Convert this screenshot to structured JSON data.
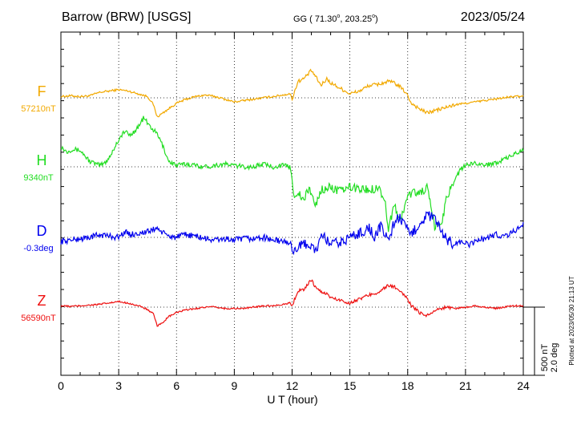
{
  "header": {
    "station": "Barrow (BRW)  [USGS]",
    "coords_prefix": "GG ( 71.30",
    "coords_deg": "o",
    "coords_mid": ", 203.25",
    "coords_end": ")",
    "date": "2023/05/24"
  },
  "plotted_note": "Plotted at 2023/05/30 21:13 UT",
  "scale": {
    "top": "500 nT",
    "bottom": "2.0 deg"
  },
  "chart_data": {
    "type": "line",
    "title": "Barrow (BRW)  [USGS]",
    "xlabel": "U T (hour)",
    "xlim": [
      0,
      24
    ],
    "xticks": [
      "0",
      "3",
      "6",
      "9",
      "12",
      "15",
      "18",
      "21",
      "24"
    ],
    "grid": true,
    "units_note": "series values are deviations from each trace's baseline, in scale units (500 nT = 2.0 deg per unit)",
    "series": [
      {
        "name": "F",
        "baseline": "57210nT",
        "color": "#f2a900",
        "x": [
          0,
          0.5,
          1,
          1.5,
          2,
          2.5,
          3,
          3.5,
          4,
          4.5,
          4.8,
          5,
          5.5,
          6,
          6.5,
          7,
          7.5,
          8,
          8.5,
          9,
          9.5,
          10,
          10.5,
          11,
          11.5,
          11.9,
          12,
          12.3,
          12.6,
          13,
          13.2,
          13.5,
          13.8,
          14,
          14.5,
          15,
          15.5,
          16,
          16.5,
          17,
          17.3,
          17.6,
          17.9,
          18.2,
          18.6,
          19,
          19.5,
          20,
          20.5,
          21,
          21.5,
          22,
          22.5,
          23,
          23.5,
          24
        ],
        "values": [
          0.02,
          0.03,
          0.02,
          0.03,
          0.08,
          0.1,
          0.12,
          0.1,
          0.06,
          0.02,
          -0.1,
          -0.28,
          -0.18,
          -0.08,
          -0.02,
          0.02,
          0.04,
          0.02,
          -0.02,
          -0.06,
          -0.04,
          -0.02,
          0.0,
          0.02,
          0.04,
          0.06,
          -0.02,
          0.24,
          0.28,
          0.4,
          0.32,
          0.18,
          0.28,
          0.22,
          0.14,
          0.06,
          0.1,
          0.18,
          0.2,
          0.24,
          0.22,
          0.16,
          0.08,
          -0.08,
          -0.16,
          -0.22,
          -0.18,
          -0.14,
          -0.1,
          -0.08,
          -0.06,
          -0.04,
          -0.02,
          0.0,
          0.02,
          0.02
        ]
      },
      {
        "name": "H",
        "baseline": "9340nT",
        "color": "#22dd22",
        "x": [
          0,
          0.3,
          0.6,
          1,
          1.5,
          2,
          2.3,
          2.6,
          3,
          3.3,
          3.6,
          4,
          4.3,
          4.6,
          5,
          5.3,
          5.6,
          6,
          6.5,
          7,
          7.5,
          8,
          8.5,
          9,
          9.5,
          10,
          10.5,
          11,
          11.5,
          11.9,
          12.1,
          12.3,
          12.6,
          12.9,
          13.2,
          13.5,
          14,
          14.5,
          15,
          15.5,
          16,
          16.5,
          16.8,
          17,
          17.3,
          17.6,
          17.9,
          18,
          18.3,
          18.6,
          19,
          19.4,
          19.8,
          20,
          20.4,
          20.8,
          21.2,
          21.6,
          22,
          22.5,
          23,
          23.5,
          24
        ],
        "values": [
          0.3,
          0.22,
          0.26,
          0.24,
          0.08,
          0.02,
          0.06,
          0.18,
          0.4,
          0.52,
          0.46,
          0.58,
          0.72,
          0.6,
          0.48,
          0.3,
          0.08,
          0.02,
          0.04,
          0.02,
          0.0,
          0.02,
          0.04,
          0.02,
          0.0,
          0.0,
          0.04,
          0.0,
          0.02,
          0.0,
          -0.4,
          -0.38,
          -0.5,
          -0.3,
          -0.58,
          -0.34,
          -0.3,
          -0.36,
          -0.3,
          -0.32,
          -0.34,
          -0.3,
          -0.48,
          -0.9,
          -0.56,
          -0.8,
          -0.52,
          -0.44,
          -0.36,
          -0.4,
          -0.3,
          -0.88,
          -0.8,
          -0.46,
          -0.2,
          -0.02,
          0.04,
          0.06,
          0.02,
          0.06,
          0.1,
          0.18,
          0.24
        ]
      },
      {
        "name": "D",
        "baseline": "-0.3deg",
        "color": "#0000ee",
        "x": [
          0,
          0.5,
          1,
          1.5,
          2,
          2.5,
          3,
          3.3,
          3.6,
          4,
          4.5,
          5,
          5.3,
          5.6,
          6,
          6.5,
          7,
          7.5,
          8,
          8.5,
          9,
          9.5,
          10,
          10.5,
          11,
          11.5,
          11.9,
          12,
          12.4,
          12.8,
          13.2,
          13.6,
          14,
          14.5,
          15,
          15.5,
          16,
          16.3,
          16.6,
          17,
          17.3,
          17.6,
          17.9,
          18.2,
          18.6,
          19,
          19.4,
          19.8,
          20,
          20.4,
          20.8,
          21.2,
          21.6,
          22,
          22.5,
          23,
          23.5,
          24
        ],
        "values": [
          -0.06,
          -0.04,
          -0.02,
          0.0,
          0.04,
          0.02,
          0.0,
          0.08,
          0.04,
          0.06,
          0.08,
          0.14,
          0.06,
          0.02,
          0.0,
          0.04,
          0.02,
          -0.02,
          -0.04,
          -0.02,
          -0.04,
          -0.02,
          -0.02,
          0.0,
          -0.04,
          -0.06,
          -0.08,
          -0.18,
          -0.14,
          -0.08,
          -0.2,
          0.02,
          -0.1,
          -0.08,
          0.0,
          0.06,
          0.14,
          0.0,
          0.16,
          -0.04,
          0.22,
          0.3,
          0.12,
          0.04,
          0.2,
          0.32,
          0.28,
          0.04,
          -0.02,
          -0.1,
          -0.06,
          -0.12,
          -0.04,
          -0.02,
          0.04,
          0.02,
          0.08,
          0.2
        ]
      },
      {
        "name": "Z",
        "baseline": "56590nT",
        "color": "#ee1111",
        "x": [
          0,
          0.5,
          1,
          1.5,
          2,
          2.5,
          3,
          3.5,
          4,
          4.4,
          4.8,
          5,
          5.3,
          5.6,
          6,
          6.5,
          7,
          7.5,
          8,
          8.5,
          9,
          9.5,
          10,
          10.5,
          11,
          11.5,
          11.9,
          12,
          12.3,
          12.6,
          13,
          13.2,
          13.5,
          13.8,
          14,
          14.5,
          15,
          15.5,
          16,
          16.5,
          17,
          17.3,
          17.6,
          17.9,
          18.2,
          18.6,
          19,
          19.5,
          20,
          20.5,
          21,
          21.5,
          22,
          22.5,
          23,
          23.5,
          24
        ],
        "values": [
          0.02,
          0.01,
          0.02,
          0.03,
          0.04,
          0.06,
          0.08,
          0.06,
          0.02,
          -0.02,
          -0.1,
          -0.28,
          -0.22,
          -0.14,
          -0.08,
          -0.04,
          -0.02,
          0.0,
          0.0,
          -0.02,
          -0.02,
          -0.02,
          0.0,
          0.02,
          0.02,
          0.04,
          0.06,
          0.02,
          0.24,
          0.26,
          0.4,
          0.3,
          0.22,
          0.2,
          0.14,
          0.1,
          0.06,
          0.12,
          0.18,
          0.22,
          0.32,
          0.3,
          0.22,
          0.16,
          0.02,
          -0.08,
          -0.12,
          -0.04,
          0.0,
          -0.02,
          0.0,
          0.02,
          0.0,
          -0.02,
          0.0,
          0.02,
          0.02
        ]
      }
    ]
  }
}
